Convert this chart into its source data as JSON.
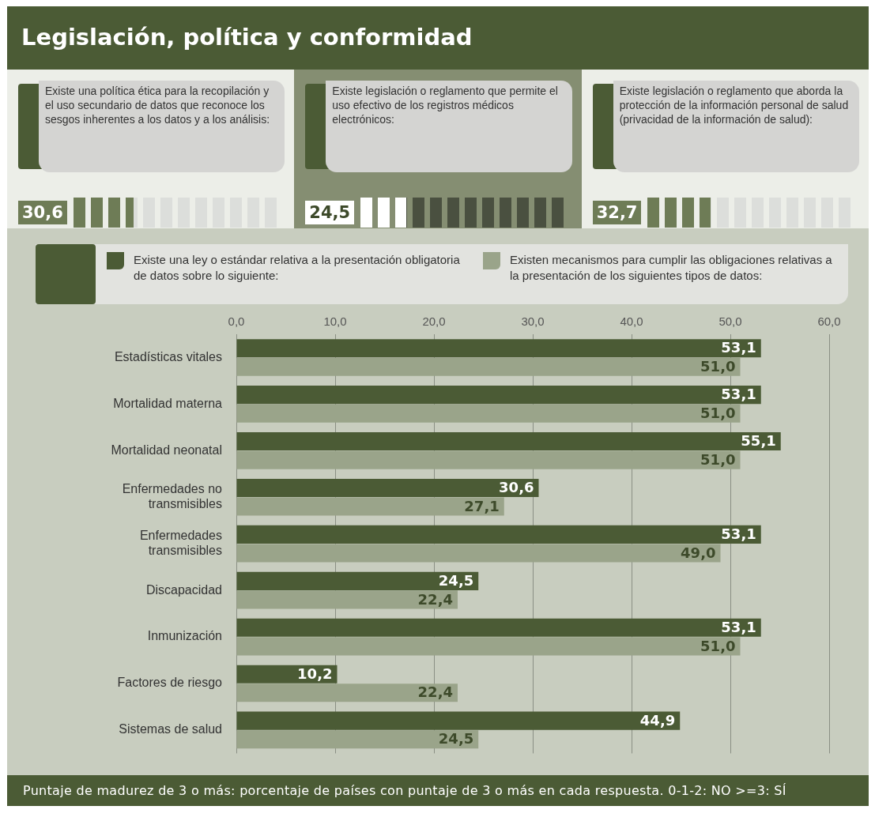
{
  "chart_data": [
    {
      "type": "other",
      "title": "Existe una política ética para la recopilación y el uso secundario de datos que reconoce los sesgos inherentes a los datos y a los análisis:",
      "values": [
        30.6
      ],
      "value_labels": [
        "30,6"
      ]
    },
    {
      "type": "other",
      "title": "Existe legislación o reglamento que permite el uso efectivo de los registros médicos electrónicos:",
      "values": [
        24.5
      ],
      "value_labels": [
        "24,5"
      ]
    },
    {
      "type": "other",
      "title": "Existe legislación o reglamento que aborda la protección de la información personal de salud (privacidad de la información de salud):",
      "values": [
        32.7
      ],
      "value_labels": [
        "32,7"
      ]
    },
    {
      "type": "bar",
      "title": "Legislación, política y conformidad",
      "orientation": "horizontal",
      "categories": [
        "Estadísticas vitales",
        "Mortalidad materna",
        "Mortalidad neonatal",
        "Enfermedades no transmisibles",
        "Enfermedades transmisibles",
        "Discapacidad",
        "Inmunización",
        "Factores de riesgo",
        "Sistemas de salud"
      ],
      "series": [
        {
          "name": "Existe una ley o estándar relativa a la presentación obligatoria de datos sobre lo siguiente:",
          "color": "#4b5b35",
          "values": [
            53.1,
            53.1,
            55.1,
            30.6,
            53.1,
            24.5,
            53.1,
            10.2,
            44.9
          ],
          "value_labels": [
            "53,1",
            "53,1",
            "55,1",
            "30,6",
            "53,1",
            "24,5",
            "53,1",
            "10,2",
            "44,9"
          ]
        },
        {
          "name": "Existen mecanismos para cumplir las obligaciones relativas a la presentación de los siguientes tipos de datos:",
          "color": "#9aa48a",
          "values": [
            51.0,
            51.0,
            51.0,
            27.1,
            49.0,
            22.4,
            51.0,
            22.4,
            24.5
          ],
          "value_labels": [
            "51,0",
            "51,0",
            "51,0",
            "27,1",
            "49,0",
            "22,4",
            "51,0",
            "22,4",
            "24,5"
          ]
        }
      ],
      "xlim": [
        0,
        60
      ],
      "xticks": [
        {
          "value": 0,
          "label": "0,0"
        },
        {
          "value": 10,
          "label": "10,0"
        },
        {
          "value": 20,
          "label": "20,0"
        },
        {
          "value": 30,
          "label": "30,0"
        },
        {
          "value": 40,
          "label": "40,0"
        },
        {
          "value": 50,
          "label": "50,0"
        },
        {
          "value": 60,
          "label": "60,0"
        }
      ],
      "grid": "x",
      "legend": "top",
      "annotations": [
        "Puntaje de madurez de 3 o más: porcentaje de países con puntaje de 3 o más en cada respuesta. 0-1-2: NO >=3: SÍ"
      ]
    }
  ]
}
